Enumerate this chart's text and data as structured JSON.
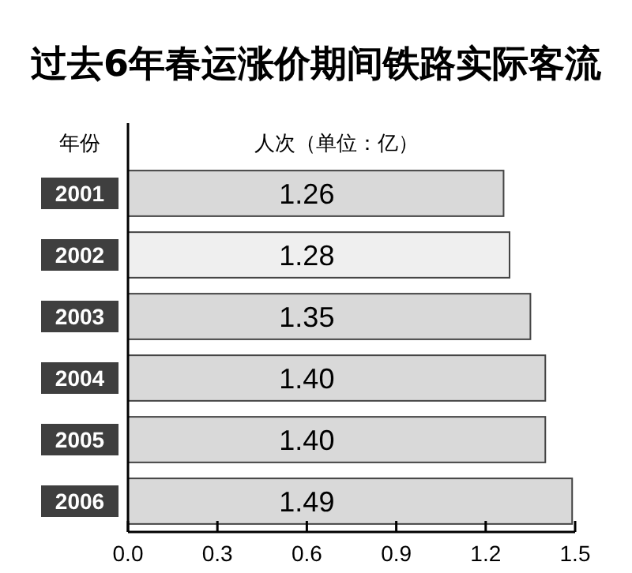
{
  "chart_data": {
    "type": "bar",
    "orientation": "horizontal",
    "title": "过去6年春运涨价期间铁路实际客流",
    "xlabel": "人次（单位：亿）",
    "annotations": [
      "年份"
    ],
    "categories": [
      "2001",
      "2002",
      "2003",
      "2004",
      "2005",
      "2006"
    ],
    "values": [
      1.26,
      1.28,
      1.35,
      1.4,
      1.4,
      1.49
    ],
    "value_labels": [
      "1.26",
      "1.28",
      "1.35",
      "1.40",
      "1.40",
      "1.49"
    ],
    "colors": [
      "#d9d9d9",
      "#efefef",
      "#d9d9d9",
      "#d9d9d9",
      "#d9d9d9",
      "#d9d9d9"
    ],
    "xlim": [
      0,
      1.5
    ],
    "xticks": [
      {
        "value": 0,
        "label": "0.0"
      },
      {
        "value": 0.3,
        "label": "0.3"
      },
      {
        "value": 0.6,
        "label": "0.6"
      },
      {
        "value": 0.9,
        "label": "0.9"
      },
      {
        "value": 1.2,
        "label": "1.2"
      },
      {
        "value": 1.5,
        "label": "1.5"
      }
    ],
    "grid": false
  }
}
